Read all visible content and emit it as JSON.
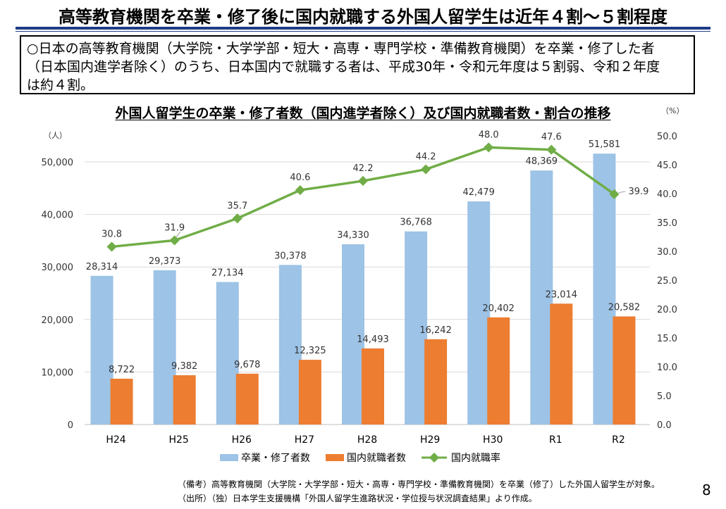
{
  "page": {
    "title": "高等教育機関を卒業・修了後に国内就職する外国人留学生は近年４割～５割程度",
    "summary_lines": [
      "○日本の高等教育機関（大学院・大学学部・短大・高専・専門学校・準備教育機関）を卒業・修了した者",
      "（日本国内進学者除く）のうち、日本国内で就職する者は、平成30年・令和元年度は５割弱、令和２年度",
      "は約４割。"
    ],
    "notes": {
      "bikou": "（備考）高等教育機関（大学院・大学学部・短大・高専・専門学校・準備教育機関）を卒業（修了）した外国人留学生が対象。",
      "shusho": "（出所）（独）日本学生支援機構「外国人留学生進路状況・学位授与状況調査結果」より作成。"
    },
    "page_number": "8"
  },
  "chart_data": {
    "type": "bar",
    "title": "外国人留学生の卒業・修了者数（国内進学者除く）及び国内就職者数・割合の推移",
    "categories": [
      "H24",
      "H25",
      "H26",
      "H27",
      "H28",
      "H29",
      "H30",
      "R1",
      "R2"
    ],
    "series": [
      {
        "name": "卒業・修了者数",
        "type": "bar",
        "axis": "left",
        "color": "#9dc3e6",
        "values": [
          28314,
          29373,
          27134,
          30378,
          34330,
          36768,
          42479,
          48369,
          51581
        ],
        "labels": [
          "28,314",
          "29,373",
          "27,134",
          "30,378",
          "34,330",
          "36,768",
          "42,479",
          "48,369",
          "51,581"
        ]
      },
      {
        "name": "国内就職者数",
        "type": "bar",
        "axis": "left",
        "color": "#ed7d31",
        "values": [
          8722,
          9382,
          9678,
          12325,
          14493,
          16242,
          20402,
          23014,
          20582
        ],
        "labels": [
          "8,722",
          "9,382",
          "9,678",
          "12,325",
          "14,493",
          "16,242",
          "20,402",
          "23,014",
          "20,582"
        ]
      },
      {
        "name": "国内就職率",
        "type": "line",
        "axis": "right",
        "color": "#70ad47",
        "values": [
          30.8,
          31.9,
          35.7,
          40.6,
          42.2,
          44.2,
          48.0,
          47.6,
          39.9
        ],
        "labels": [
          "30.8",
          "31.9",
          "35.7",
          "40.6",
          "42.2",
          "44.2",
          "48.0",
          "47.6",
          "39.9"
        ]
      }
    ],
    "y_left": {
      "unit": "（人）",
      "ylim": [
        0,
        55000
      ],
      "ticks": [
        0,
        10000,
        20000,
        30000,
        40000,
        50000
      ],
      "tick_labels": [
        "0",
        "10,000",
        "20,000",
        "30,000",
        "40,000",
        "50,000"
      ]
    },
    "y_right": {
      "unit": "（%）",
      "ylim": [
        0,
        50
      ],
      "ticks": [
        0,
        5,
        10,
        15,
        20,
        25,
        30,
        35,
        40,
        45,
        50
      ],
      "tick_labels": [
        "0.0",
        "5.0",
        "10.0",
        "15.0",
        "20.0",
        "25.0",
        "30.0",
        "35.0",
        "40.0",
        "45.0",
        "50.0"
      ]
    },
    "legend_position": "bottom"
  }
}
